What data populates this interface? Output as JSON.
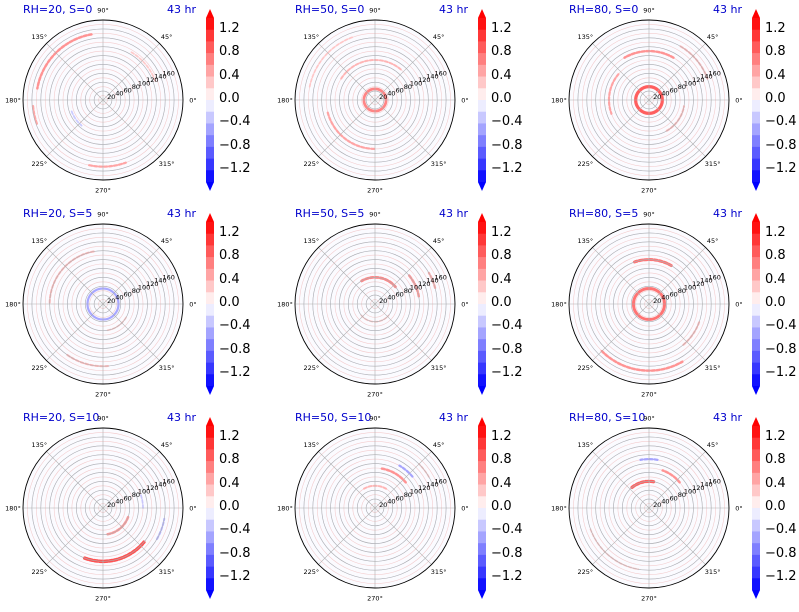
{
  "chart_data": [
    {
      "type": "heatmap",
      "projection": "polar",
      "title": "RH=20, S=0",
      "time_label": "43 hr",
      "rh": 20,
      "s": 0,
      "features": [
        {
          "r": 150,
          "theta": [
            100,
            170
          ],
          "sign": "pos",
          "strength": 0.6
        },
        {
          "r": 158,
          "theta": [
            185,
            200
          ],
          "sign": "pos",
          "strength": 0.5
        },
        {
          "r": 150,
          "theta": [
            258,
            290
          ],
          "sign": "pos",
          "strength": 0.5
        },
        {
          "r": 75,
          "theta": [
            200,
            230
          ],
          "sign": "neg",
          "strength": 0.3
        },
        {
          "r": 125,
          "theta": [
            20,
            60
          ],
          "sign": "pos",
          "strength": 0.3
        }
      ]
    },
    {
      "type": "heatmap",
      "projection": "polar",
      "title": "RH=50, S=0",
      "time_label": "43 hr",
      "rh": 50,
      "s": 0,
      "features": [
        {
          "r": 25,
          "theta": [
            0,
            360
          ],
          "sign": "pos",
          "strength": 0.7
        },
        {
          "r": 110,
          "theta": [
            195,
            270
          ],
          "sign": "pos",
          "strength": 0.5
        },
        {
          "r": 90,
          "theta": [
            50,
            150
          ],
          "sign": "pos",
          "strength": 0.4
        },
        {
          "r": 150,
          "theta": [
            110,
            170
          ],
          "sign": "pos",
          "strength": 0.3
        }
      ]
    },
    {
      "type": "heatmap",
      "projection": "polar",
      "title": "RH=80, S=0",
      "time_label": "43 hr",
      "rh": 80,
      "s": 0,
      "features": [
        {
          "r": 30,
          "theta": [
            0,
            360
          ],
          "sign": "pos",
          "strength": 0.9
        },
        {
          "r": 110,
          "theta": [
            60,
            120
          ],
          "sign": "pos",
          "strength": 0.6
        },
        {
          "r": 90,
          "theta": [
            140,
            200
          ],
          "sign": "pos",
          "strength": 0.5
        },
        {
          "r": 140,
          "theta": [
            20,
            60
          ],
          "sign": "pos",
          "strength": 0.4
        },
        {
          "r": 80,
          "theta": [
            300,
            350
          ],
          "sign": "pos",
          "strength": 0.4
        }
      ]
    },
    {
      "type": "heatmap",
      "projection": "polar",
      "title": "RH=20, S=5",
      "time_label": "43 hr",
      "rh": 20,
      "s": 5,
      "features": [
        {
          "r": 35,
          "theta": [
            0,
            360
          ],
          "sign": "neg",
          "strength": 0.5
        },
        {
          "r": 120,
          "theta": [
            100,
            180
          ],
          "sign": "pos",
          "strength": 0.4
        },
        {
          "r": 140,
          "theta": [
            235,
            275
          ],
          "sign": "pos",
          "strength": 0.4
        },
        {
          "r": 60,
          "theta": [
            280,
            330
          ],
          "sign": "pos",
          "strength": 0.3
        }
      ]
    },
    {
      "type": "heatmap",
      "projection": "polar",
      "title": "RH=50, S=5",
      "time_label": "43 hr",
      "rh": 50,
      "s": 5,
      "features": [
        {
          "r": 60,
          "theta": [
            40,
            120
          ],
          "sign": "pos",
          "strength": 0.7
        },
        {
          "r": 100,
          "theta": [
            10,
            40
          ],
          "sign": "pos",
          "strength": 0.6
        },
        {
          "r": 140,
          "theta": [
            15,
            30
          ],
          "sign": "pos",
          "strength": 0.5
        },
        {
          "r": 40,
          "theta": [
            220,
            320
          ],
          "sign": "pos",
          "strength": 0.3
        }
      ]
    },
    {
      "type": "heatmap",
      "projection": "polar",
      "title": "RH=80, S=5",
      "time_label": "43 hr",
      "rh": 80,
      "s": 5,
      "features": [
        {
          "r": 35,
          "theta": [
            0,
            360
          ],
          "sign": "pos",
          "strength": 0.8
        },
        {
          "r": 100,
          "theta": [
            60,
            110
          ],
          "sign": "pos",
          "strength": 0.8
        },
        {
          "r": 150,
          "theta": [
            225,
            300
          ],
          "sign": "pos",
          "strength": 0.6
        },
        {
          "r": 120,
          "theta": [
            310,
            340
          ],
          "sign": "pos",
          "strength": 0.4
        }
      ]
    },
    {
      "type": "heatmap",
      "projection": "polar",
      "title": "RH=20, S=10",
      "time_label": "43 hr",
      "rh": 20,
      "s": 10,
      "features": [
        {
          "r": 120,
          "theta": [
            250,
            320
          ],
          "sign": "pos",
          "strength": 1.0
        },
        {
          "r": 60,
          "theta": [
            280,
            340
          ],
          "sign": "pos",
          "strength": 0.6
        },
        {
          "r": 140,
          "theta": [
            330,
            350
          ],
          "sign": "neg",
          "strength": 0.4
        },
        {
          "r": 90,
          "theta": [
            0,
            20
          ],
          "sign": "neg",
          "strength": 0.3
        }
      ]
    },
    {
      "type": "heatmap",
      "projection": "polar",
      "title": "RH=50, S=10",
      "time_label": "43 hr",
      "rh": 50,
      "s": 10,
      "features": [
        {
          "r": 90,
          "theta": [
            40,
            80
          ],
          "sign": "pos",
          "strength": 0.6
        },
        {
          "r": 110,
          "theta": [
            40,
            60
          ],
          "sign": "neg",
          "strength": 0.5
        },
        {
          "r": 50,
          "theta": [
            60,
            120
          ],
          "sign": "pos",
          "strength": 0.4
        },
        {
          "r": 140,
          "theta": [
            30,
            45
          ],
          "sign": "pos",
          "strength": 0.3
        }
      ]
    },
    {
      "type": "heatmap",
      "projection": "polar",
      "title": "RH=80, S=10",
      "time_label": "43 hr",
      "rh": 80,
      "s": 10,
      "features": [
        {
          "r": 60,
          "theta": [
            80,
            130
          ],
          "sign": "pos",
          "strength": 0.9
        },
        {
          "r": 90,
          "theta": [
            40,
            70
          ],
          "sign": "pos",
          "strength": 0.6
        },
        {
          "r": 110,
          "theta": [
            80,
            100
          ],
          "sign": "neg",
          "strength": 0.5
        },
        {
          "r": 140,
          "theta": [
            200,
            260
          ],
          "sign": "pos",
          "strength": 0.3
        }
      ]
    }
  ],
  "radial_ticks": [
    "20",
    "40",
    "60",
    "80",
    "100",
    "120",
    "140",
    "160"
  ],
  "radial_values": [
    20,
    40,
    60,
    80,
    100,
    120,
    140,
    160
  ],
  "r_max": 180,
  "angle_ticks": [
    "0°",
    "45°",
    "90°",
    "135°",
    "180°",
    "225°",
    "270°",
    "315°"
  ],
  "angle_values": [
    0,
    45,
    90,
    135,
    180,
    225,
    270,
    315
  ],
  "colorbar": {
    "ticks": [
      "1.2",
      "0.8",
      "0.4",
      "0.0",
      "−0.4",
      "−0.8",
      "−1.2"
    ],
    "tick_values": [
      1.2,
      0.8,
      0.4,
      0.0,
      -0.4,
      -0.8,
      -1.2
    ],
    "vmin": -1.4,
    "vmax": 1.4,
    "levels": 14,
    "extend": "both",
    "colormap": "bwr",
    "color_low": "#0000ff",
    "color_mid": "#ffffff",
    "color_high": "#ff0000"
  },
  "colors": {
    "title": "#0000cc",
    "grid": "#b0b0b0",
    "field_ring_pos": "#f0b8b8",
    "field_ring_neg": "#c8d0f8"
  }
}
